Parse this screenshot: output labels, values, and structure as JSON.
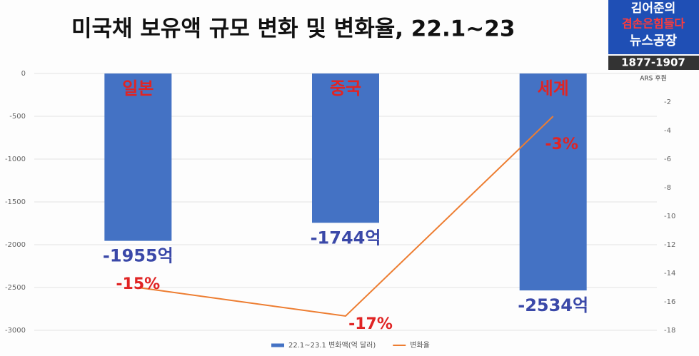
{
  "chart_data": {
    "type": "bar",
    "title": "미국채 보유액 규모 변화 및 변화율, 22.1~23",
    "categories": [
      "일본",
      "중국",
      "세계"
    ],
    "series": [
      {
        "name": "22.1~23.1 변화액(억 달러)",
        "type": "bar",
        "color": "#4472c4",
        "values": [
          -1955,
          -1744,
          -2534
        ],
        "value_labels": [
          "-1955억",
          "-1744억",
          "-2534억"
        ]
      },
      {
        "name": "변화율",
        "type": "line",
        "axis": "y2",
        "color": "#ed7d31",
        "values": [
          -15,
          -17,
          -3
        ],
        "value_labels": [
          "-15%",
          "-17%",
          "-3%"
        ]
      }
    ],
    "ylim": [
      -3000,
      0
    ],
    "yticks": [
      0,
      -500,
      -1000,
      -1500,
      -2000,
      -2500,
      -3000
    ],
    "y2lim": [
      -18,
      0
    ],
    "y2ticks": [
      -2,
      -4,
      -6,
      -8,
      -10,
      -12,
      -14,
      -16,
      -18
    ],
    "grid": true,
    "legend": "bottom"
  },
  "logo": {
    "line1": "김어준의",
    "line2": "겸손은힘들다",
    "line3": "뉴스공장",
    "phone": "1877-1907",
    "ars": "ARS 후원"
  }
}
